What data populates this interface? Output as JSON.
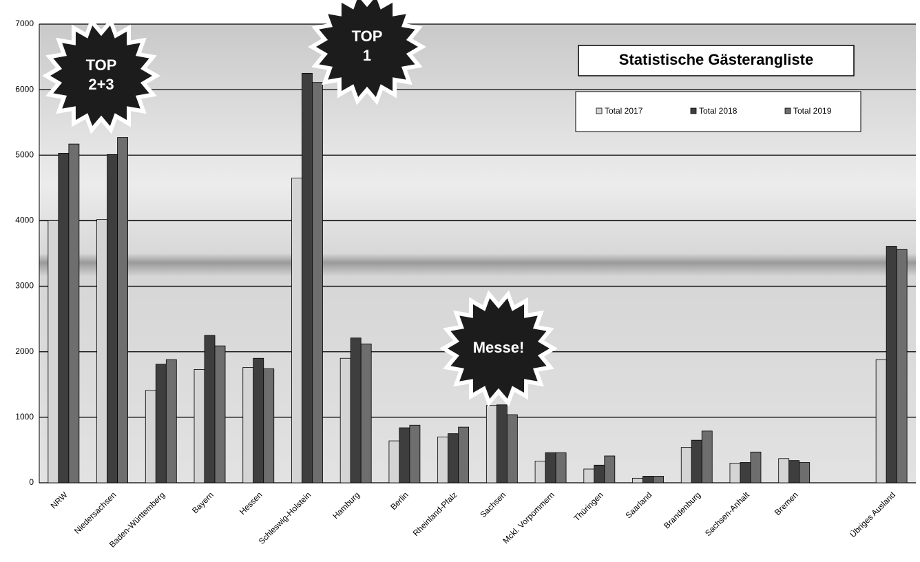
{
  "chart_data": {
    "type": "bar",
    "title": "Statistische Gästerangliste",
    "categories": [
      "NRW",
      "Niedersachsen",
      "Baden-Württemberg",
      "Bayern",
      "Hessen",
      "Schleswig-Holstein",
      "Hamburg",
      "Berlin",
      "Rheinland-Pfalz",
      "Sachsen",
      "Mckl. Vorpommern",
      "Thüringen",
      "Saarland",
      "Brandenburg",
      "Sachsen-Anhalt",
      "Bremen",
      null,
      "Übriges Ausland"
    ],
    "series": [
      {
        "name": "Total 2017",
        "color": "#d4d4d4",
        "values": [
          4000,
          4020,
          1410,
          1730,
          1760,
          4650,
          1900,
          640,
          700,
          1180,
          330,
          210,
          70,
          540,
          300,
          370,
          null,
          1880
        ]
      },
      {
        "name": "Total 2018",
        "color": "#3e3e3e",
        "values": [
          5030,
          5010,
          1810,
          2250,
          1900,
          6250,
          2210,
          840,
          750,
          1190,
          460,
          270,
          100,
          650,
          310,
          340,
          null,
          3610
        ]
      },
      {
        "name": "Total 2019",
        "color": "#6e6e6e",
        "values": [
          5170,
          5270,
          1880,
          2090,
          1740,
          6110,
          2120,
          880,
          850,
          1040,
          460,
          410,
          100,
          790,
          470,
          310,
          null,
          3560
        ]
      }
    ],
    "ylim": [
      0,
      7000
    ],
    "yticks": [
      0,
      1000,
      2000,
      3000,
      4000,
      5000,
      6000,
      7000
    ],
    "grid": true,
    "annotations": [
      [
        "TOP",
        "2+3"
      ],
      [
        "TOP",
        "1"
      ],
      [
        "Messe!"
      ]
    ]
  }
}
